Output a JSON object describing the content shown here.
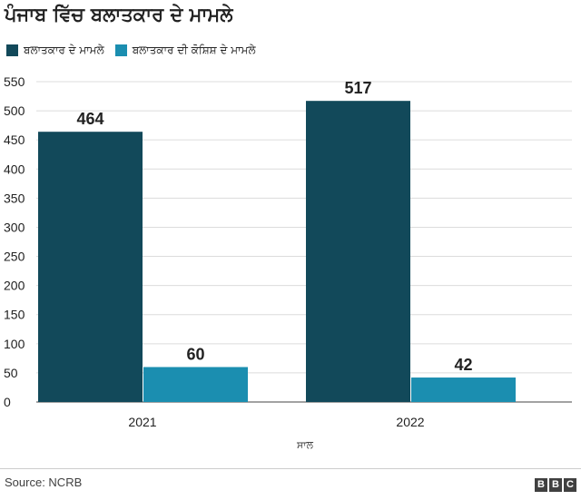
{
  "chart_data": {
    "type": "bar",
    "title": "ਪੰਜਾਬ ਵਿੱਚ ਬਲਾਤਕਾਰ ਦੇ ਮਾਮਲੇ",
    "xlabel": "ਸਾਲ",
    "ylabel": "",
    "categories": [
      "2021",
      "2022"
    ],
    "series": [
      {
        "name": "ਬਲਾਤਕਾਰ ਦੇ ਮਾਮਲੇ",
        "values": [
          464,
          517
        ],
        "color": "#12495a"
      },
      {
        "name": "ਬਲਾਤਕਾਰ ਦੀ ਕੋਸ਼ਿਸ਼ ਦੇ ਮਾਮਲੇ",
        "values": [
          60,
          42
        ],
        "color": "#1b8eb0"
      }
    ],
    "ylim": [
      0,
      550
    ],
    "yticks": [
      0,
      50,
      100,
      150,
      200,
      250,
      300,
      350,
      400,
      450,
      500,
      550
    ],
    "grid": true,
    "legend_position": "top-left",
    "data_labels": true
  },
  "footer": {
    "source": "Source: NCRB",
    "logo_letters": [
      "B",
      "B",
      "C"
    ],
    "logo_text": "BBC"
  }
}
